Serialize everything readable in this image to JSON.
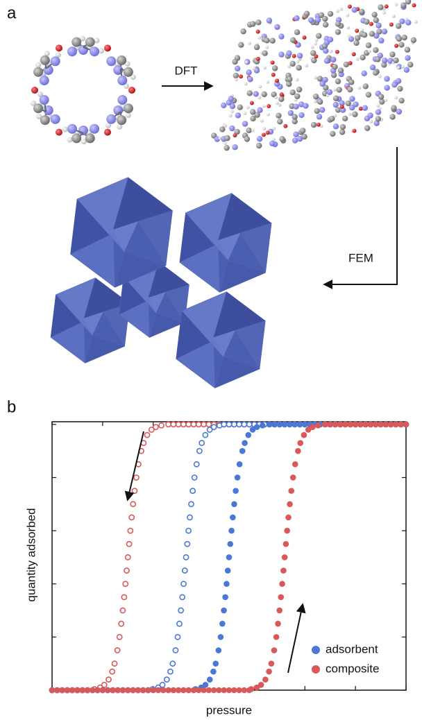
{
  "panel_a": {
    "label": "a",
    "step1": "DFT",
    "step2": "FEM"
  },
  "chart_data": {
    "type": "scatter",
    "panel_label": "b",
    "xlabel": "pressure",
    "ylabel": "quantity adsorbed",
    "xlim": [
      0,
      7
    ],
    "ylim": [
      0,
      5.05
    ],
    "xticks": [
      0,
      1,
      2,
      3,
      4,
      5,
      6,
      7
    ],
    "yticks": [
      0,
      1,
      2,
      3,
      4,
      5
    ],
    "legend_position": "lower right",
    "series": [
      {
        "name": "composite",
        "color": "#d9585a",
        "marker": "open",
        "x": [
          0,
          0.1,
          0.2,
          0.3,
          0.4,
          0.5,
          0.6,
          0.7,
          0.838,
          0.949,
          1.033,
          1.119,
          1.19,
          1.236,
          1.292,
          1.334,
          1.368,
          1.398,
          1.426,
          1.451,
          1.476,
          1.5,
          1.524,
          1.549,
          1.574,
          1.602,
          1.632,
          1.666,
          1.708,
          1.764,
          1.81,
          1.881,
          1.967,
          2.051,
          2.162,
          2.3,
          2.4,
          2.5,
          2.6,
          2.7,
          2.8,
          2.9,
          3,
          3.1,
          3.2,
          3.3,
          3.4,
          3.5,
          3.6,
          3.7,
          3.8,
          3.9,
          4,
          4.1,
          4.2,
          4.3,
          4.4,
          4.5,
          4.6,
          4.7,
          4.8,
          4.9,
          5,
          5.1,
          5.2,
          5.3,
          5.4,
          5.5,
          5.6,
          5.7,
          5.8,
          5.9,
          6,
          6.1,
          6.2,
          6.3,
          6.4,
          6.5,
          6.6,
          6.7,
          6.8,
          6.9,
          7
        ],
        "values": [
          0,
          0,
          0,
          0,
          0,
          0,
          0,
          0,
          0.02,
          0.05,
          0.1,
          0.2,
          0.35,
          0.5,
          0.75,
          1,
          1.25,
          1.5,
          1.75,
          2,
          2.25,
          2.5,
          2.75,
          3,
          3.25,
          3.5,
          3.75,
          4,
          4.25,
          4.5,
          4.65,
          4.8,
          4.9,
          4.95,
          4.98,
          5,
          5,
          5,
          5,
          5,
          5,
          5,
          5,
          5,
          5,
          5,
          5,
          5,
          5,
          5,
          5,
          5,
          5,
          5,
          5,
          5,
          5,
          5,
          5,
          5,
          5,
          5,
          5,
          5,
          5,
          5,
          5,
          5,
          5,
          5,
          5,
          5,
          5,
          5,
          5,
          5,
          5,
          5,
          5,
          5,
          5,
          5,
          5
        ]
      },
      {
        "name": "adsorbent",
        "color": "#4a78d4",
        "marker": "open",
        "x": [
          0,
          0.1,
          0.2,
          0.3,
          0.4,
          0.5,
          0.6,
          0.7,
          0.8,
          0.9,
          1,
          1.1,
          1.2,
          1.3,
          1.4,
          1.5,
          1.6,
          1.7,
          1.8,
          1.9,
          1.988,
          2.099,
          2.183,
          2.269,
          2.34,
          2.386,
          2.442,
          2.484,
          2.518,
          2.548,
          2.576,
          2.601,
          2.626,
          2.65,
          2.674,
          2.699,
          2.724,
          2.752,
          2.782,
          2.816,
          2.858,
          2.914,
          2.96,
          3.031,
          3.117,
          3.201,
          3.312,
          3.4,
          3.5,
          3.6,
          3.7,
          3.8,
          3.9,
          4,
          4.1,
          4.2,
          4.3,
          4.4,
          4.5,
          4.6,
          4.7,
          4.8,
          4.9,
          5,
          5.1,
          5.2,
          5.3,
          5.4,
          5.5,
          5.6,
          5.7,
          5.8,
          5.9,
          6,
          6.1,
          6.2,
          6.3,
          6.4,
          6.5,
          6.6,
          6.7,
          6.8,
          6.9,
          7
        ],
        "values": [
          0,
          0,
          0,
          0,
          0,
          0,
          0,
          0,
          0,
          0,
          0,
          0,
          0,
          0,
          0,
          0,
          0,
          0,
          0,
          0,
          0.02,
          0.05,
          0.1,
          0.2,
          0.35,
          0.5,
          0.75,
          1,
          1.25,
          1.5,
          1.75,
          2,
          2.25,
          2.5,
          2.75,
          3,
          3.25,
          3.5,
          3.75,
          4,
          4.25,
          4.5,
          4.65,
          4.8,
          4.9,
          4.95,
          4.98,
          5,
          5,
          5,
          5,
          5,
          5,
          5,
          5,
          5,
          5,
          5,
          5,
          5,
          5,
          5,
          5,
          5,
          5,
          5,
          5,
          5,
          5,
          5,
          5,
          5,
          5,
          5,
          5,
          5,
          5,
          5,
          5,
          5,
          5,
          5,
          5,
          5
        ]
      },
      {
        "name": "adsorbent",
        "color": "#4a78d4",
        "marker": "filled",
        "x": [
          0,
          0.1,
          0.2,
          0.3,
          0.4,
          0.5,
          0.6,
          0.7,
          0.8,
          0.9,
          1,
          1.1,
          1.2,
          1.3,
          1.4,
          1.5,
          1.6,
          1.7,
          1.8,
          1.9,
          2,
          2.1,
          2.2,
          2.3,
          2.4,
          2.5,
          2.6,
          2.7,
          2.8,
          2.838,
          2.949,
          3.033,
          3.119,
          3.19,
          3.236,
          3.292,
          3.334,
          3.368,
          3.398,
          3.426,
          3.451,
          3.476,
          3.5,
          3.524,
          3.549,
          3.574,
          3.602,
          3.632,
          3.666,
          3.708,
          3.764,
          3.81,
          3.881,
          3.967,
          4.051,
          4.162,
          4.3,
          4.4,
          4.5,
          4.6,
          4.7,
          4.8,
          4.9,
          5,
          5.1,
          5.2,
          5.3,
          5.4,
          5.5,
          5.6,
          5.7,
          5.8,
          5.9,
          6,
          6.1,
          6.2,
          6.3,
          6.4,
          6.5,
          6.6,
          6.7,
          6.8,
          6.9,
          7
        ],
        "values": [
          0,
          0,
          0,
          0,
          0,
          0,
          0,
          0,
          0,
          0,
          0,
          0,
          0,
          0,
          0,
          0,
          0,
          0,
          0,
          0,
          0,
          0,
          0,
          0,
          0,
          0,
          0,
          0,
          0,
          0.02,
          0.05,
          0.1,
          0.2,
          0.35,
          0.5,
          0.75,
          1,
          1.25,
          1.5,
          1.75,
          2,
          2.25,
          2.5,
          2.75,
          3,
          3.25,
          3.5,
          3.75,
          4,
          4.25,
          4.5,
          4.65,
          4.8,
          4.9,
          4.95,
          4.98,
          5,
          5,
          5,
          5,
          5,
          5,
          5,
          5,
          5,
          5,
          5,
          5,
          5,
          5,
          5,
          5,
          5,
          5,
          5,
          5,
          5,
          5,
          5,
          5,
          5,
          5,
          5,
          5
        ]
      },
      {
        "name": "composite",
        "color": "#d9585a",
        "marker": "filled",
        "x": [
          0,
          0.1,
          0.2,
          0.3,
          0.4,
          0.5,
          0.6,
          0.7,
          0.8,
          0.9,
          1,
          1.1,
          1.2,
          1.3,
          1.4,
          1.5,
          1.6,
          1.7,
          1.8,
          1.9,
          2,
          2.1,
          2.2,
          2.3,
          2.4,
          2.5,
          2.6,
          2.7,
          2.8,
          2.9,
          3,
          3.1,
          3.2,
          3.3,
          3.4,
          3.5,
          3.6,
          3.7,
          3.8,
          3.9,
          3.938,
          4.049,
          4.133,
          4.219,
          4.29,
          4.336,
          4.392,
          4.434,
          4.468,
          4.498,
          4.526,
          4.551,
          4.576,
          4.6,
          4.624,
          4.649,
          4.674,
          4.702,
          4.732,
          4.766,
          4.808,
          4.864,
          4.91,
          4.981,
          5.067,
          5.151,
          5.262,
          5.4,
          5.5,
          5.6,
          5.7,
          5.8,
          5.9,
          6,
          6.1,
          6.2,
          6.3,
          6.4,
          6.5,
          6.6,
          6.7,
          6.8,
          6.9,
          7
        ],
        "values": [
          0,
          0,
          0,
          0,
          0,
          0,
          0,
          0,
          0,
          0,
          0,
          0,
          0,
          0,
          0,
          0,
          0,
          0,
          0,
          0,
          0,
          0,
          0,
          0,
          0,
          0,
          0,
          0,
          0,
          0,
          0,
          0,
          0,
          0,
          0,
          0,
          0,
          0,
          0,
          0,
          0.02,
          0.05,
          0.1,
          0.2,
          0.35,
          0.5,
          0.75,
          1,
          1.25,
          1.5,
          1.75,
          2,
          2.25,
          2.5,
          2.75,
          3,
          3.25,
          3.5,
          3.75,
          4,
          4.25,
          4.5,
          4.65,
          4.8,
          4.9,
          4.95,
          4.98,
          5,
          5,
          5,
          5,
          5,
          5,
          5,
          5,
          5,
          5,
          5,
          5,
          5,
          5,
          5,
          5,
          5
        ]
      }
    ]
  }
}
